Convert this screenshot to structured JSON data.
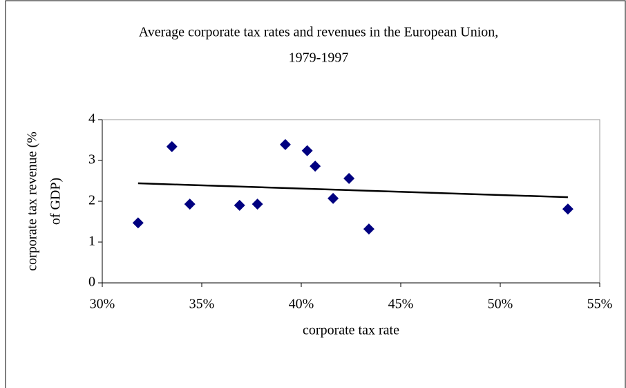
{
  "chart_data": {
    "type": "scatter",
    "title": [
      "Average corporate tax rates and revenues in the European Union,",
      "1979-1997"
    ],
    "xlabel": "corporate tax rate",
    "ylabel": [
      "corporate tax revenue (%",
      "of GDP)"
    ],
    "series": [
      {
        "color": "#000080",
        "marker": "diamond",
        "x": [
          31.8,
          33.5,
          34.4,
          36.9,
          37.8,
          39.2,
          40.3,
          40.7,
          41.6,
          42.4,
          43.4,
          53.4
        ],
        "values": [
          1.47,
          3.34,
          1.93,
          1.9,
          1.93,
          3.39,
          3.24,
          2.86,
          2.07,
          2.56,
          1.32,
          1.81
        ]
      },
      {
        "color": "#000000",
        "marker": "line",
        "x": [
          31.8,
          53.4
        ],
        "values": [
          2.44,
          2.1
        ]
      }
    ],
    "xlim": [
      30,
      55
    ],
    "xticks": [
      {
        "value": 30,
        "label": "30%"
      },
      {
        "value": 35,
        "label": "35%"
      },
      {
        "value": 40,
        "label": "40%"
      },
      {
        "value": 45,
        "label": "45%"
      },
      {
        "value": 50,
        "label": "50%"
      },
      {
        "value": 55,
        "label": "55%"
      }
    ],
    "ylim": [
      0,
      4
    ],
    "yticks": [
      0,
      1,
      2,
      3,
      4
    ],
    "grid": false
  }
}
